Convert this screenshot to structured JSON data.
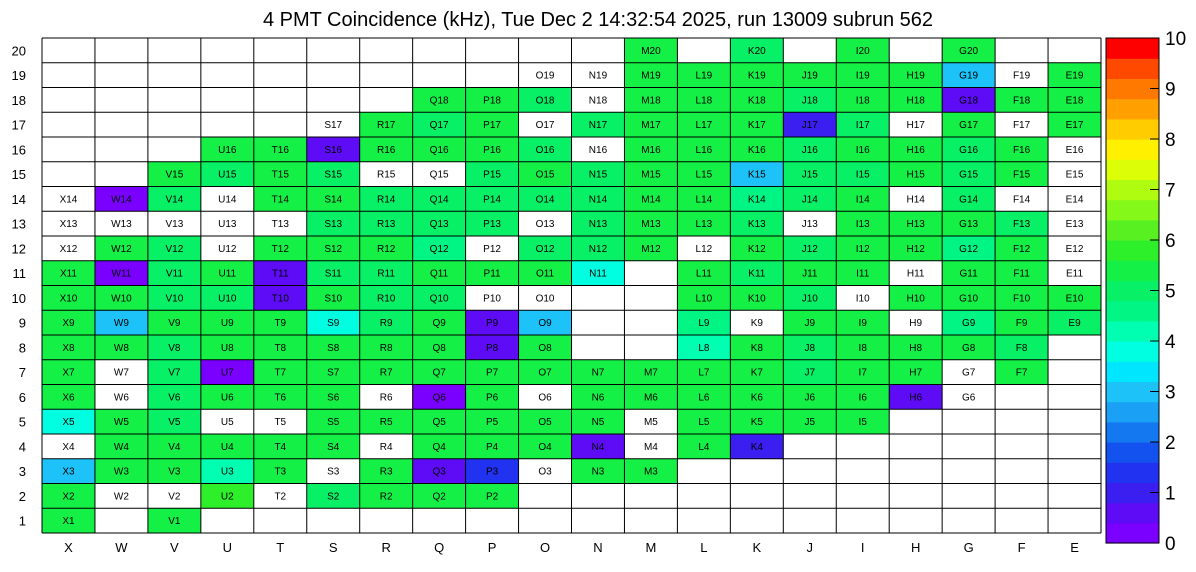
{
  "chart_data": {
    "type": "heatmap",
    "title": "4 PMT Coincidence (kHz), Tue Dec  2 14:32:54 2025, run 13009 subrun 562",
    "x_labels": [
      "X",
      "W",
      "V",
      "U",
      "T",
      "S",
      "R",
      "Q",
      "P",
      "O",
      "N",
      "M",
      "L",
      "K",
      "J",
      "I",
      "H",
      "G",
      "F",
      "E"
    ],
    "y_labels": [
      "1",
      "2",
      "3",
      "4",
      "5",
      "6",
      "7",
      "8",
      "9",
      "10",
      "11",
      "12",
      "13",
      "14",
      "15",
      "16",
      "17",
      "18",
      "19",
      "20"
    ],
    "zlim": [
      0,
      10
    ],
    "scale_ticks": [
      "0",
      "1",
      "2",
      "3",
      "4",
      "5",
      "6",
      "7",
      "8",
      "9",
      "10"
    ],
    "grid": true,
    "colorbar_position": "right",
    "palette": [
      "#7a00ff",
      "#5e0cf5",
      "#3b1ef0",
      "#2133f0",
      "#1352ee",
      "#1478f0",
      "#1aa0f4",
      "#1cc2f8",
      "#00e6ff",
      "#00ffe0",
      "#00ffb0",
      "#00f584",
      "#08f066",
      "#15f046",
      "#2ef02a",
      "#58f020",
      "#84f818",
      "#b0fc10",
      "#dcff08",
      "#fff000",
      "#ffcc00",
      "#ffa000",
      "#ff7800",
      "#ff4800",
      "#ff0000"
    ],
    "rows": [
      {
        "y": "20",
        "cells": [
          null,
          null,
          null,
          null,
          null,
          null,
          null,
          null,
          null,
          null,
          null,
          5.4,
          null,
          4.9,
          null,
          5.3,
          null,
          5.4,
          null,
          null
        ]
      },
      {
        "y": "19",
        "cells": [
          null,
          null,
          null,
          null,
          null,
          null,
          null,
          null,
          null,
          -1,
          -1,
          5.2,
          5.6,
          5.3,
          5.5,
          5.4,
          5.2,
          3.0,
          -1,
          5.3
        ]
      },
      {
        "y": "18",
        "cells": [
          null,
          null,
          null,
          null,
          null,
          null,
          null,
          5.4,
          5.3,
          5.0,
          -1,
          5.3,
          5.3,
          5.3,
          5.0,
          5.3,
          5.3,
          0.4,
          5.5,
          5.4
        ]
      },
      {
        "y": "17",
        "cells": [
          null,
          null,
          null,
          null,
          null,
          -1,
          5.3,
          5.0,
          5.2,
          -1,
          5.0,
          5.3,
          5.4,
          5.2,
          1.0,
          5.1,
          -1,
          5.6,
          -1,
          5.4
        ]
      },
      {
        "y": "16",
        "cells": [
          null,
          null,
          null,
          5.2,
          5.4,
          0.4,
          5.2,
          5.2,
          5.2,
          5.0,
          -1,
          5.2,
          5.2,
          5.2,
          5.0,
          5.2,
          5.2,
          5.1,
          5.4,
          -1
        ]
      },
      {
        "y": "15",
        "cells": [
          null,
          null,
          5.2,
          5.0,
          5.3,
          5.0,
          -1,
          -1,
          5.1,
          5.2,
          5.1,
          5.3,
          5.3,
          2.9,
          5.1,
          5.1,
          5.3,
          5.1,
          5.4,
          -1
        ]
      },
      {
        "y": "14",
        "cells": [
          -1,
          0.2,
          5.1,
          -1,
          5.5,
          5.2,
          5.1,
          4.9,
          5.1,
          5.1,
          5.1,
          5.3,
          5.2,
          4.7,
          5.1,
          5.3,
          -1,
          5.1,
          -1,
          -1
        ]
      },
      {
        "y": "13",
        "cells": [
          -1,
          -1,
          -1,
          -1,
          -1,
          5.0,
          5.1,
          4.8,
          5.1,
          -1,
          4.8,
          5.2,
          5.2,
          5.0,
          -1,
          5.3,
          5.2,
          5.3,
          4.8,
          -1
        ]
      },
      {
        "y": "12",
        "cells": [
          -1,
          5.4,
          5.1,
          -1,
          5.4,
          5.2,
          5.2,
          4.6,
          -1,
          5.0,
          5.1,
          5.2,
          -1,
          5.2,
          5.0,
          5.3,
          5.2,
          4.6,
          5.3,
          -1
        ]
      },
      {
        "y": "11",
        "cells": [
          5.3,
          0.3,
          5.1,
          5.3,
          0.4,
          5.1,
          5.0,
          5.2,
          5.2,
          5.3,
          3.6,
          null,
          5.4,
          5.1,
          5.2,
          5.3,
          -1,
          5.2,
          5.5,
          -1
        ]
      },
      {
        "y": "10",
        "cells": [
          5.3,
          5.2,
          5.1,
          5.1,
          0.4,
          5.3,
          4.9,
          5.0,
          -1,
          -1,
          null,
          null,
          5.6,
          5.2,
          5.1,
          -1,
          5.6,
          5.2,
          5.3,
          5.4
        ]
      },
      {
        "y": "9",
        "cells": [
          5.3,
          2.9,
          5.2,
          5.3,
          5.5,
          3.8,
          5.1,
          5.2,
          0.4,
          2.9,
          null,
          null,
          4.7,
          -1,
          5.4,
          5.3,
          -1,
          4.5,
          5.2,
          5.1
        ]
      },
      {
        "y": "8",
        "cells": [
          5.2,
          5.3,
          5.1,
          5.2,
          5.3,
          5.2,
          5.2,
          5.3,
          0.4,
          5.2,
          null,
          null,
          4.3,
          5.3,
          5.1,
          5.3,
          5.5,
          5.2,
          4.8,
          null
        ]
      },
      {
        "y": "7",
        "cells": [
          5.3,
          -1,
          5.1,
          0.3,
          5.3,
          5.3,
          5.2,
          5.2,
          5.4,
          5.2,
          5.2,
          5.3,
          5.2,
          5.2,
          5.1,
          5.3,
          5.3,
          -1,
          5.4,
          null
        ]
      },
      {
        "y": "6",
        "cells": [
          5.4,
          -1,
          5.1,
          5.2,
          5.3,
          5.3,
          -1,
          0.3,
          5.2,
          -1,
          5.3,
          5.3,
          5.3,
          5.2,
          5.3,
          5.2,
          0.4,
          -1,
          null,
          null
        ]
      },
      {
        "y": "5",
        "cells": [
          3.6,
          5.2,
          5.1,
          -1,
          -1,
          5.2,
          5.2,
          5.5,
          5.4,
          5.3,
          5.2,
          -1,
          5.3,
          5.3,
          5.4,
          5.6,
          null,
          null,
          null,
          null
        ]
      },
      {
        "y": "4",
        "cells": [
          -1,
          5.3,
          5.3,
          5.3,
          5.5,
          5.4,
          -1,
          5.4,
          5.5,
          5.3,
          0.4,
          -1,
          5.5,
          1.0,
          null,
          null,
          null,
          null,
          null,
          null
        ]
      },
      {
        "y": "3",
        "cells": [
          2.9,
          5.3,
          5.2,
          4.2,
          5.2,
          -1,
          5.3,
          0.4,
          1.2,
          -1,
          5.2,
          5.3,
          null,
          null,
          null,
          null,
          null,
          null,
          null,
          null
        ]
      },
      {
        "y": "2",
        "cells": [
          5.3,
          -1,
          -1,
          5.7,
          -1,
          4.9,
          5.3,
          5.3,
          5.3,
          null,
          null,
          null,
          null,
          null,
          null,
          null,
          null,
          null,
          null,
          null
        ]
      },
      {
        "y": "1",
        "cells": [
          5.3,
          null,
          5.2,
          null,
          null,
          null,
          null,
          null,
          null,
          null,
          null,
          null,
          null,
          null,
          null,
          null,
          null,
          null,
          null,
          null
        ]
      }
    ]
  }
}
